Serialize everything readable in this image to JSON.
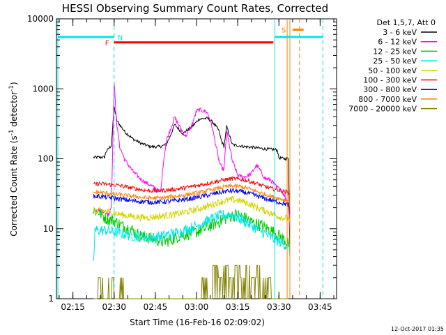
{
  "chart_data": {
    "type": "line",
    "title": "HESSI Observing Summary Count Rates, Corrected",
    "xlabel": "Start Time (16-Feb-16 02:09:02)",
    "ylabel_parts": [
      "Corrected Count Rate (s",
      "-1",
      " detector",
      "-1",
      ")"
    ],
    "x_ticks": [
      "02:15",
      "02:30",
      "02:45",
      "03:00",
      "03:15",
      "03:30",
      "03:45"
    ],
    "x_tick_minutes": [
      6,
      21,
      36,
      51,
      66,
      81,
      96
    ],
    "x_range_minutes": [
      0,
      102
    ],
    "y_scale": "log",
    "ylim": [
      1,
      10000
    ],
    "y_ticks": [
      "1",
      "10",
      "100",
      "1000",
      "10000"
    ],
    "legend_header": "Det 1,5,7, Att 0",
    "series": [
      {
        "name": "3 - 6 keV",
        "color": "#000000",
        "x": [
          13.5,
          17.5,
          18.0,
          20,
          21,
          22,
          25,
          28,
          31,
          34,
          36,
          38,
          40,
          41,
          42,
          43,
          46,
          49,
          52,
          55,
          57,
          59,
          60,
          61,
          62,
          64,
          68,
          72,
          76,
          80,
          80.5,
          81,
          82,
          83,
          84.5,
          85
        ],
        "y": [
          105,
          105,
          125,
          155,
          550,
          350,
          240,
          190,
          165,
          150,
          148,
          150,
          160,
          195,
          240,
          310,
          230,
          280,
          370,
          380,
          330,
          260,
          185,
          150,
          290,
          160,
          150,
          145,
          138,
          135,
          130,
          103,
          102,
          100,
          100,
          4
        ]
      },
      {
        "name": "6 - 12 keV",
        "color": "#ff00ff",
        "x": [
          13.5,
          17.5,
          19,
          20,
          21,
          22,
          23,
          25,
          28,
          31,
          34,
          36,
          37,
          38,
          39,
          40,
          42,
          43,
          45,
          47,
          49,
          51,
          52,
          54,
          55,
          56,
          57,
          58,
          59,
          60,
          61,
          62,
          64,
          66,
          68,
          70,
          71,
          72,
          73,
          74,
          75,
          76,
          78,
          80,
          82,
          83,
          84.5,
          85
        ],
        "y": [
          19,
          18,
          16,
          21,
          1200,
          300,
          150,
          95,
          65,
          50,
          42,
          38,
          34,
          35,
          95,
          180,
          300,
          390,
          280,
          210,
          280,
          480,
          500,
          480,
          450,
          360,
          250,
          160,
          100,
          75,
          70,
          250,
          95,
          58,
          55,
          58,
          62,
          72,
          80,
          70,
          60,
          52,
          50,
          40,
          35,
          30,
          22,
          10
        ]
      },
      {
        "name": "12 - 25 keV",
        "color": "#00cc00",
        "x": [
          13.5,
          15,
          18,
          21,
          24,
          27,
          30,
          33,
          36,
          39,
          42,
          45,
          48,
          51,
          54,
          57,
          60,
          63,
          66,
          69,
          72,
          75,
          78,
          81,
          83,
          84.5,
          85
        ],
        "y": [
          18,
          18,
          14,
          13,
          11,
          10,
          8,
          7.5,
          7,
          6.5,
          7,
          8,
          8.5,
          9,
          10,
          11.5,
          13,
          15,
          16,
          14,
          12,
          11,
          9.5,
          8,
          7,
          6,
          4
        ]
      },
      {
        "name": "25 - 50 keV",
        "color": "#00e6e6",
        "x": [
          13.5,
          14,
          18,
          21,
          24,
          27,
          30,
          33,
          36,
          39,
          42,
          45,
          48,
          51,
          54,
          57,
          60,
          63,
          66,
          69,
          72,
          75,
          78,
          81,
          83,
          84.5,
          85
        ],
        "y": [
          3,
          9.5,
          9.5,
          9,
          8.5,
          8,
          7.8,
          7.5,
          7.5,
          8,
          8.5,
          9,
          10,
          11,
          12.5,
          14,
          15.5,
          16,
          14.5,
          12.5,
          10.5,
          9,
          7.5,
          6.5,
          6,
          5.5,
          5
        ]
      },
      {
        "name": "50 - 100 keV",
        "color": "#d4d400",
        "x": [
          13.5,
          16,
          19,
          22,
          25,
          28,
          31,
          34,
          37,
          40,
          43,
          46,
          49,
          52,
          55,
          58,
          61,
          64,
          67,
          70,
          73,
          76,
          79,
          82,
          84.5,
          85
        ],
        "y": [
          18,
          18,
          17.5,
          16.5,
          15.5,
          15,
          14.5,
          14.5,
          15,
          15.5,
          16,
          17,
          18,
          19.5,
          21,
          23,
          25,
          26,
          25,
          23,
          20,
          18,
          16,
          14.5,
          14,
          12
        ]
      },
      {
        "name": "100 - 300 keV",
        "color": "#ff0000",
        "x": [
          13.5,
          16,
          19,
          22,
          25,
          28,
          31,
          34,
          37,
          40,
          43,
          46,
          49,
          52,
          55,
          58,
          61,
          64,
          67,
          70,
          73,
          76,
          79,
          82,
          84.5,
          85
        ],
        "y": [
          43,
          44,
          43,
          42,
          40,
          38,
          36,
          35,
          35,
          35.5,
          36.5,
          38,
          40,
          42,
          44.5,
          47,
          50,
          52,
          51,
          48,
          44,
          40,
          37,
          35,
          33,
          30
        ]
      },
      {
        "name": "300 - 800 keV",
        "color": "#0000ff",
        "x": [
          13.5,
          16,
          19,
          22,
          25,
          28,
          31,
          34,
          37,
          40,
          43,
          46,
          49,
          52,
          55,
          58,
          61,
          64,
          67,
          70,
          73,
          76,
          79,
          82,
          84.5,
          85
        ],
        "y": [
          29,
          29,
          28,
          27,
          26,
          25,
          24.5,
          24,
          24,
          24.5,
          25,
          26,
          27,
          28.5,
          30,
          32,
          34,
          35,
          34,
          32,
          29.5,
          27,
          25,
          23.5,
          22,
          20
        ]
      },
      {
        "name": "800 - 7000 keV",
        "color": "#ff8000",
        "x": [
          13.5,
          16,
          19,
          22,
          25,
          28,
          31,
          34,
          37,
          40,
          43,
          46,
          49,
          52,
          55,
          58,
          61,
          64,
          67,
          70,
          73,
          76,
          79,
          82,
          84.5,
          85
        ],
        "y": [
          33,
          33,
          32,
          31,
          30,
          29,
          28,
          27.5,
          27.5,
          28,
          29,
          30,
          31.5,
          33,
          35,
          37,
          39.5,
          41,
          40,
          37.5,
          34,
          31,
          28.5,
          26.5,
          25,
          22
        ]
      },
      {
        "name": "7000 - 20000 keV",
        "color": "#808000",
        "x": [
          13.5,
          15,
          17,
          19,
          21,
          23,
          25,
          27,
          29,
          31,
          33,
          35,
          37,
          39,
          41,
          43,
          45,
          47,
          49,
          51,
          53,
          55,
          57,
          59,
          61,
          63,
          65,
          67,
          69,
          71,
          73,
          75,
          77,
          79,
          81,
          83,
          84.5
        ],
        "y": [
          1,
          2,
          1,
          2,
          1,
          2,
          1,
          1,
          1,
          1,
          1,
          1,
          1,
          1,
          1,
          1,
          1,
          1,
          1,
          1,
          2,
          1,
          3,
          2,
          3,
          2,
          3,
          2,
          3,
          2,
          3,
          2,
          2,
          1,
          1,
          1,
          1
        ]
      }
    ],
    "annotations": {
      "night_bars": [
        {
          "label": "N",
          "color": "#00e6e6",
          "x_start": 0.5,
          "x_end": 102,
          "y": 5500,
          "dash_line_at": 21
        },
        {
          "label": "F",
          "color": "#ff0000",
          "x_start": 21,
          "x_end": 79,
          "y": 4600
        }
      ],
      "saa_bar": {
        "label": "S",
        "color": "#ff8000",
        "x": [
          86,
          90
        ],
        "y": 7000
      },
      "vertical_lines": [
        {
          "x": 0.5,
          "color": "#00e6e6",
          "style": "solid"
        },
        {
          "x": 21,
          "color": "#00e6e6",
          "style": "dashed"
        },
        {
          "x": 79.5,
          "color": "#00e6e6",
          "style": "solid"
        },
        {
          "x": 84,
          "color": "#ff8000",
          "style": "solid"
        },
        {
          "x": 85,
          "color": "#ff8000",
          "style": "solid"
        },
        {
          "x": 88.5,
          "color": "#ff8000",
          "style": "dashed"
        },
        {
          "x": 97,
          "color": "#00e6e6",
          "style": "dashed"
        }
      ]
    }
  },
  "timestamp": "12-Oct-2017 01:35"
}
